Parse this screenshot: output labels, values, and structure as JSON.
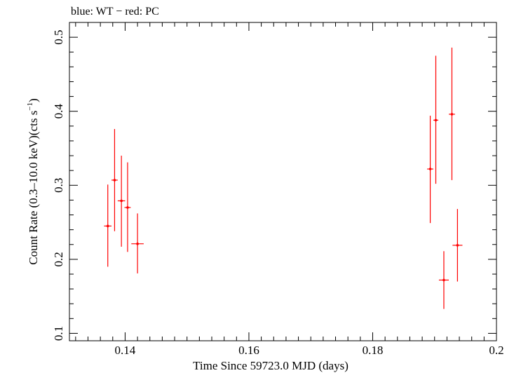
{
  "chart_data": {
    "type": "scatter",
    "title": "blue: WT − red: PC",
    "xlabel": "Time Since 59723.0 MJD (days)",
    "ylabel_main": "Count Rate (0.3–10.0 keV)(cts s",
    "ylabel_sup": "−1",
    "ylabel_close": ")",
    "xlim": [
      0.131,
      0.2
    ],
    "ylim": [
      0.09,
      0.52
    ],
    "x_ticks": [
      {
        "value": 0.14,
        "label": "0.14"
      },
      {
        "value": 0.16,
        "label": "0.16"
      },
      {
        "value": 0.18,
        "label": "0.18"
      },
      {
        "value": 0.2,
        "label": "0.2"
      }
    ],
    "y_ticks": [
      {
        "value": 0.1,
        "label": "0.1"
      },
      {
        "value": 0.2,
        "label": "0.2"
      },
      {
        "value": 0.3,
        "label": "0.3"
      },
      {
        "value": 0.4,
        "label": "0.4"
      },
      {
        "value": 0.5,
        "label": "0.5"
      }
    ],
    "series": [
      {
        "name": "PC",
        "color": "#ff0000",
        "points": [
          {
            "x": 0.1372,
            "xerr": 0.0006,
            "y": 0.245,
            "ylo": 0.19,
            "yhi": 0.301
          },
          {
            "x": 0.1383,
            "xerr": 0.0005,
            "y": 0.307,
            "ylo": 0.238,
            "yhi": 0.376
          },
          {
            "x": 0.1394,
            "xerr": 0.0006,
            "y": 0.279,
            "ylo": 0.217,
            "yhi": 0.34
          },
          {
            "x": 0.1404,
            "xerr": 0.0005,
            "y": 0.27,
            "ylo": 0.21,
            "yhi": 0.331
          },
          {
            "x": 0.142,
            "xerr": 0.001,
            "y": 0.221,
            "ylo": 0.181,
            "yhi": 0.262
          },
          {
            "x": 0.1893,
            "xerr": 0.0005,
            "y": 0.322,
            "ylo": 0.249,
            "yhi": 0.394
          },
          {
            "x": 0.1902,
            "xerr": 0.0004,
            "y": 0.388,
            "ylo": 0.302,
            "yhi": 0.475
          },
          {
            "x": 0.1915,
            "xerr": 0.0008,
            "y": 0.172,
            "ylo": 0.133,
            "yhi": 0.211
          },
          {
            "x": 0.1928,
            "xerr": 0.0005,
            "y": 0.396,
            "ylo": 0.307,
            "yhi": 0.486
          },
          {
            "x": 0.1937,
            "xerr": 0.0008,
            "y": 0.219,
            "ylo": 0.17,
            "yhi": 0.268
          }
        ]
      }
    ]
  }
}
